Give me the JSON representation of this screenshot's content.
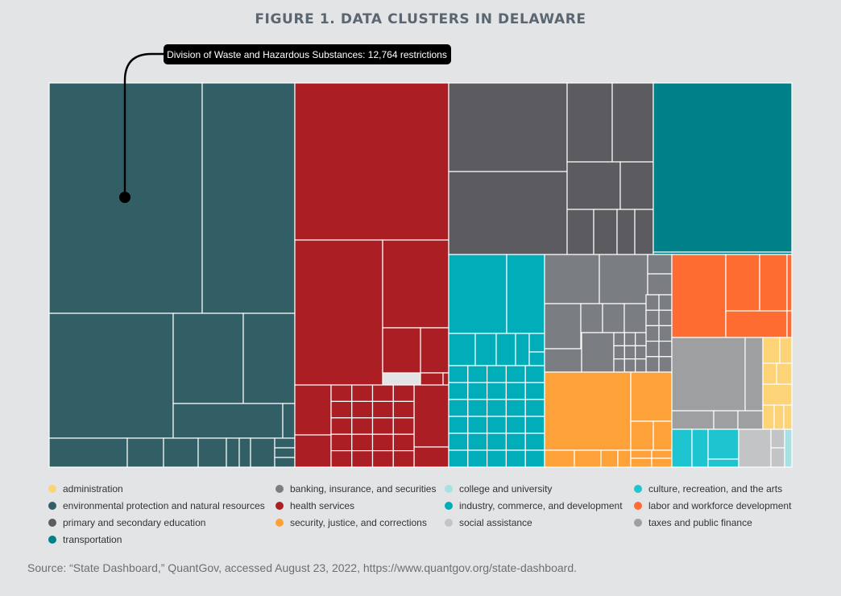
{
  "title": "FIGURE 1. DATA CLUSTERS IN DELAWARE",
  "source": "Source: “State Dashboard,” QuantGov, accessed August 23, 2022, https://www.quantgov.org/state-dashboard.",
  "chart_data": {
    "type": "treemap",
    "annotation": {
      "text": "Division of Waste and Hazardous Substances: 12,764 restrictions",
      "category": "environmental protection and natural resources",
      "value": 12764
    },
    "categories": [
      {
        "name": "administration",
        "color": "#fdd378"
      },
      {
        "name": "banking, insurance, and securities",
        "color": "#7a7d82"
      },
      {
        "name": "college and university",
        "color": "#a6e1e4"
      },
      {
        "name": "culture, recreation, and the arts",
        "color": "#1ec5d0"
      },
      {
        "name": "environmental protection and natural resources",
        "color": "#325f66"
      },
      {
        "name": "health services",
        "color": "#ab1e24"
      },
      {
        "name": "industry, commerce, and development",
        "color": "#00adb9"
      },
      {
        "name": "labor and workforce development",
        "color": "#fe6c31"
      },
      {
        "name": "primary and secondary education",
        "color": "#5c5b5f"
      },
      {
        "name": "security, justice, and corrections",
        "color": "#ffa139"
      },
      {
        "name": "social assistance",
        "color": "#c2c4c6"
      },
      {
        "name": "taxes and public finance",
        "color": "#9d9fa1"
      },
      {
        "name": "transportation",
        "color": "#00818a"
      }
    ]
  }
}
